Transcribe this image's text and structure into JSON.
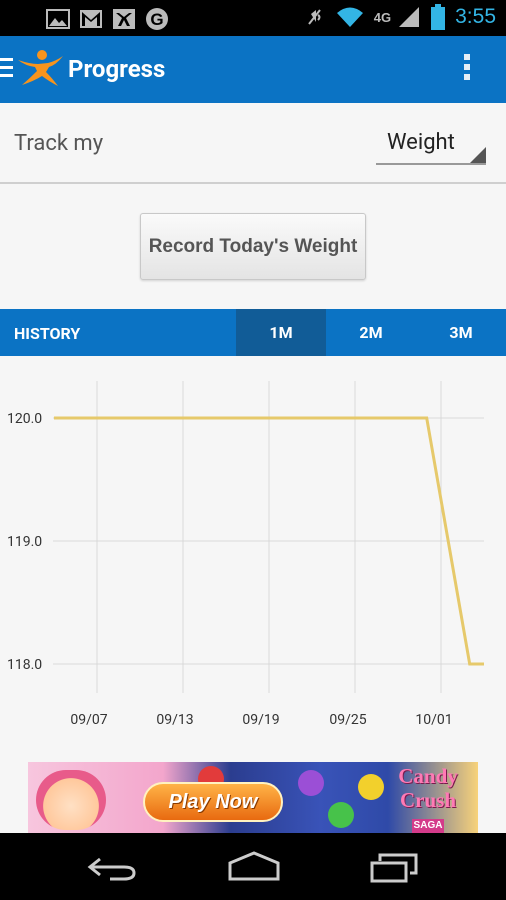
{
  "status_bar": {
    "network": "4G",
    "time": "3:55",
    "notification_icons": [
      "picture-icon",
      "gmail-icon",
      "myfitnesspal-icon",
      "google-icon"
    ],
    "system_icons": [
      "mute-icon",
      "wifi-icon",
      "signal-icon",
      "battery-icon"
    ]
  },
  "action_bar": {
    "title": "Progress",
    "accent_color": "#0b73c4"
  },
  "track": {
    "label": "Track my",
    "selected_metric": "Weight"
  },
  "record_button": {
    "label": "Record Today's Weight"
  },
  "history": {
    "label": "HISTORY",
    "tabs": [
      {
        "label": "1M",
        "selected": true
      },
      {
        "label": "2M",
        "selected": false
      },
      {
        "label": "3M",
        "selected": false
      }
    ]
  },
  "chart_data": {
    "type": "line",
    "title": "",
    "xlabel": "",
    "ylabel": "",
    "x_ticks": [
      "09/07",
      "09/13",
      "09/19",
      "09/25",
      "10/01"
    ],
    "y_ticks": [
      "120.0",
      "119.0",
      "118.0"
    ],
    "ylim": [
      117.8,
      120.3
    ],
    "grid": true,
    "line_color": "#e6c96b",
    "series": [
      {
        "name": "",
        "points": [
          {
            "x": "09/04",
            "y": 120.0
          },
          {
            "x": "09/30",
            "y": 120.0
          },
          {
            "x": "10/03",
            "y": 118.0
          },
          {
            "x": "10/04",
            "y": 118.0
          }
        ]
      }
    ]
  },
  "ad": {
    "button_text": "Play Now",
    "logo_text_1": "Candy",
    "logo_text_2": "Crush",
    "logo_badge": "SAGA"
  },
  "nav_bar": {
    "buttons": [
      "back-icon",
      "home-icon",
      "recent-apps-icon"
    ]
  }
}
